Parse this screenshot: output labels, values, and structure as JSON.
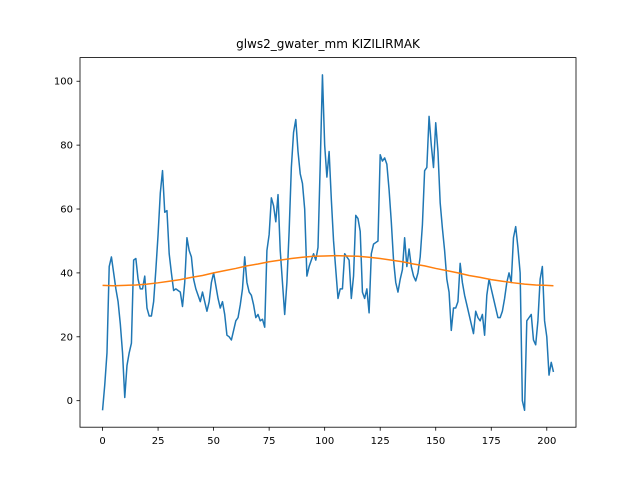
{
  "chart_data": {
    "type": "line",
    "title": "glws2_gwater_mm KIZILIRMAK",
    "xlim": [
      -10.15,
      213.15
    ],
    "xticks": [
      0,
      25,
      50,
      75,
      100,
      125,
      150,
      175,
      200
    ],
    "ylim": [
      -8.3,
      107.4
    ],
    "yticks": [
      0,
      20,
      40,
      60,
      80,
      100
    ],
    "series": [
      {
        "color": "#1f77b4",
        "values": [
          -3,
          5,
          15,
          42,
          45,
          40,
          35,
          31,
          24,
          15,
          1,
          11,
          15,
          18,
          44,
          44.5,
          38,
          35,
          35,
          39,
          29,
          26.5,
          26.5,
          31,
          41,
          52,
          65,
          72,
          59,
          59.5,
          46,
          40,
          34.5,
          35,
          34.5,
          34,
          29.5,
          37,
          51,
          47,
          45,
          38,
          35,
          33,
          31,
          34,
          31,
          28,
          31,
          37,
          40,
          36,
          32,
          29,
          31,
          27,
          20.5,
          20,
          19,
          22,
          25,
          26,
          30,
          35,
          45,
          37,
          34,
          33,
          30,
          26,
          27,
          25,
          25.5,
          23,
          47,
          52,
          63.5,
          61,
          56,
          64.5,
          47,
          37,
          27,
          37,
          53,
          73,
          84,
          88,
          78,
          71,
          68,
          60,
          39,
          42,
          44,
          46,
          44,
          48,
          74,
          102,
          80,
          70,
          78,
          63,
          50,
          41,
          32,
          35,
          35,
          46,
          45,
          44,
          32,
          39,
          58,
          57,
          53,
          34,
          32,
          35,
          27.5,
          46,
          49,
          49.5,
          50,
          77,
          75,
          76,
          74,
          66,
          56,
          44,
          37,
          34,
          38,
          41,
          51,
          42,
          47.5,
          42,
          39,
          37.5,
          40,
          45,
          55,
          72,
          73,
          89,
          80,
          73,
          87,
          78,
          62,
          54,
          47,
          38,
          34,
          22,
          29,
          29,
          31,
          43,
          37,
          33,
          30,
          27,
          24,
          21,
          28,
          26,
          25,
          27,
          20.5,
          33,
          38,
          35,
          32,
          29,
          26,
          26,
          28,
          32,
          37,
          40,
          37,
          51,
          54.5,
          48,
          40,
          0,
          -3,
          25,
          26,
          27,
          19,
          17.5,
          25,
          38,
          42,
          25,
          20,
          8,
          12,
          9
        ]
      },
      {
        "color": "#ff7f0e",
        "x": [
          0,
          5,
          10,
          15,
          20,
          25,
          30,
          35,
          40,
          45,
          50,
          55,
          60,
          65,
          70,
          75,
          80,
          85,
          90,
          95,
          100,
          105,
          110,
          115,
          120,
          125,
          130,
          135,
          140,
          145,
          150,
          155,
          160,
          165,
          170,
          175,
          180,
          185,
          190,
          195,
          200,
          203
        ],
        "values": [
          36.1,
          36.0,
          36.1,
          36.2,
          36.5,
          36.9,
          37.4,
          37.9,
          38.6,
          39.2,
          40.0,
          40.7,
          41.4,
          42.2,
          42.8,
          43.5,
          44.0,
          44.5,
          44.9,
          45.2,
          45.3,
          45.4,
          45.3,
          45.2,
          44.9,
          44.5,
          44.0,
          43.5,
          42.8,
          42.2,
          41.4,
          40.7,
          40.0,
          39.2,
          38.6,
          37.9,
          37.4,
          36.9,
          36.5,
          36.2,
          36.1,
          36.0
        ]
      }
    ]
  }
}
